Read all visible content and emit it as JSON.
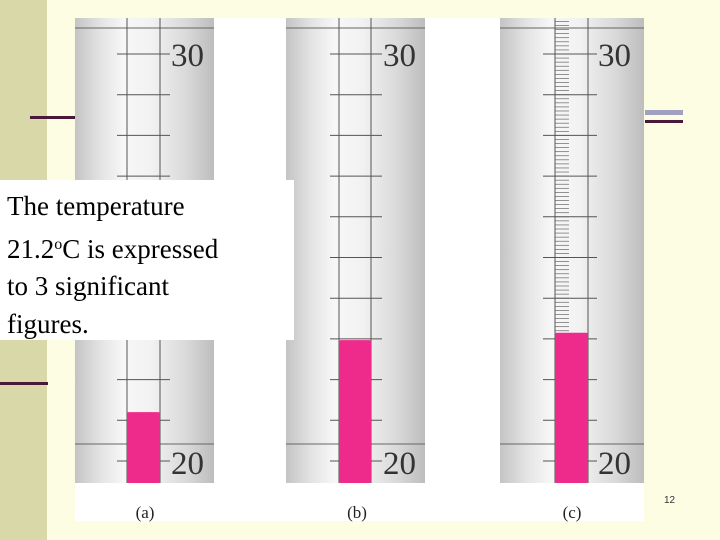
{
  "callout": {
    "line1": "The temperature",
    "line2_value": "21.2",
    "line2_degree": "o",
    "line2_rest": "C is expressed",
    "line3": "to 3 significant",
    "line4": "figures."
  },
  "thermometers": [
    {
      "id": "a",
      "caption": "(a)",
      "top_label": "30",
      "bottom_label": "20",
      "reading_c": 21.2,
      "fill_color": "#ee2a8a"
    },
    {
      "id": "b",
      "caption": "(b)",
      "top_label": "30",
      "bottom_label": "20",
      "reading_c": 22.97,
      "fill_color": "#ee2a8a"
    },
    {
      "id": "c",
      "caption": "(c)",
      "top_label": "30",
      "bottom_label": "20",
      "reading_c": 23.15,
      "fill_color": "#ee2a8a"
    }
  ],
  "slide_number": "12",
  "colors": {
    "background": "#fdfde4",
    "side_band": "#d8d8a8",
    "accent_line": "#4a1838"
  }
}
